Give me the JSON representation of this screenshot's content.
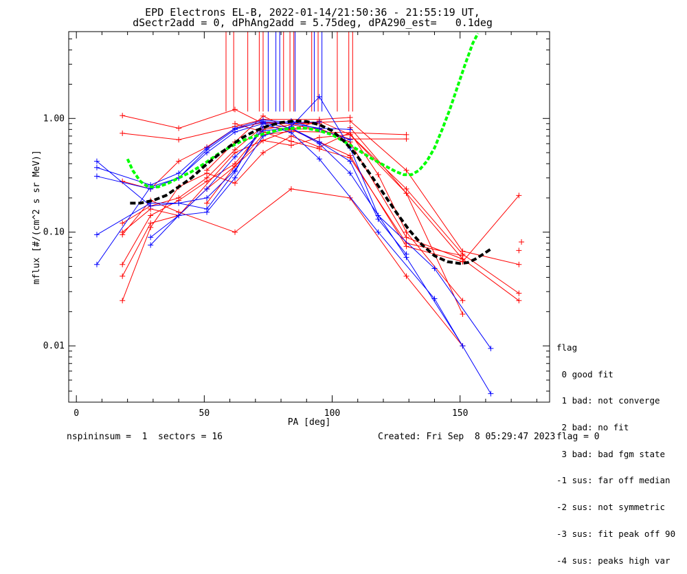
{
  "chart_data": {
    "type": "line",
    "title": "EPD Electrons EL-B, 2022-01-14/21:50:36 - 21:55:19 UT,",
    "subtitle": "dSectr2add = 0, dPhAng2add = 5.75deg, dPA290_est=   0.1deg",
    "xlabel": "PA [deg]",
    "ylabel": "mflux [#/(cm^2 s sr MeV)]",
    "x_ticks": [
      0,
      50,
      100,
      150
    ],
    "y_ticks": [
      "0.01",
      "0.10",
      "1.00"
    ],
    "y_scale": "log",
    "xlim": [
      -3,
      185
    ],
    "ylim": [
      0.0032,
      5.8
    ],
    "colors": {
      "red": "#ff0000",
      "blue": "#0000ff",
      "green": "#00ff00",
      "black": "#000000"
    },
    "red_series": [
      [
        [
          18,
          1.06
        ],
        [
          40,
          0.82
        ],
        [
          62,
          1.2
        ],
        [
          73,
          0.9
        ],
        [
          95,
          0.9
        ]
      ],
      [
        [
          18,
          0.74
        ],
        [
          40,
          0.65
        ],
        [
          62,
          0.85
        ],
        [
          73,
          0.98
        ],
        [
          95,
          0.98
        ],
        [
          107,
          1.02
        ]
      ],
      [
        [
          18,
          0.28
        ],
        [
          29,
          0.24
        ],
        [
          40,
          0.42
        ],
        [
          51,
          0.56
        ],
        [
          62,
          0.82
        ],
        [
          73,
          0.92
        ],
        [
          84,
          0.9
        ],
        [
          107,
          0.95
        ],
        [
          129,
          0.35
        ],
        [
          151,
          0.068
        ],
        [
          173,
          0.052
        ]
      ],
      [
        [
          18,
          0.12
        ],
        [
          29,
          0.17
        ],
        [
          40,
          0.2
        ],
        [
          51,
          0.3
        ],
        [
          62,
          0.53
        ],
        [
          73,
          0.85
        ],
        [
          84,
          0.8
        ],
        [
          95,
          0.95
        ],
        [
          107,
          0.72
        ],
        [
          129,
          0.24
        ],
        [
          151,
          0.064
        ],
        [
          173,
          0.029
        ]
      ],
      [
        [
          18,
          0.1
        ],
        [
          29,
          0.16
        ],
        [
          40,
          0.14
        ],
        [
          51,
          0.24
        ],
        [
          62,
          0.38
        ],
        [
          73,
          0.72
        ],
        [
          84,
          0.77
        ],
        [
          107,
          0.75
        ],
        [
          118,
          0.32
        ],
        [
          129,
          0.1
        ],
        [
          151,
          0.025
        ]
      ],
      [
        [
          18,
          0.095
        ],
        [
          29,
          0.19
        ],
        [
          40,
          0.15
        ],
        [
          62,
          0.1
        ],
        [
          84,
          0.24
        ],
        [
          107,
          0.2
        ],
        [
          129,
          0.041
        ],
        [
          151,
          0.01
        ]
      ],
      [
        [
          18,
          0.052
        ],
        [
          29,
          0.14
        ],
        [
          40,
          0.19
        ],
        [
          51,
          0.28
        ],
        [
          62,
          0.4
        ],
        [
          73,
          0.8
        ],
        [
          84,
          0.88
        ],
        [
          95,
          0.8
        ],
        [
          107,
          0.66
        ],
        [
          129,
          0.66
        ]
      ],
      [
        [
          18,
          0.041
        ],
        [
          29,
          0.12
        ],
        [
          40,
          0.14
        ],
        [
          62,
          0.5
        ],
        [
          73,
          0.64
        ],
        [
          84,
          0.58
        ],
        [
          95,
          0.68
        ],
        [
          107,
          0.72
        ],
        [
          129,
          0.22
        ],
        [
          151,
          0.019
        ]
      ],
      [
        [
          18,
          0.025
        ],
        [
          29,
          0.11
        ],
        [
          40,
          0.25
        ],
        [
          51,
          0.33
        ],
        [
          62,
          0.27
        ],
        [
          73,
          0.5
        ],
        [
          84,
          0.7
        ],
        [
          95,
          0.56
        ],
        [
          107,
          0.75
        ],
        [
          129,
          0.72
        ]
      ],
      [
        [
          51,
          0.35
        ],
        [
          62,
          0.62
        ],
        [
          73,
          1.05
        ],
        [
          84,
          0.8
        ],
        [
          95,
          0.82
        ],
        [
          107,
          0.62
        ],
        [
          129,
          0.09
        ],
        [
          151,
          0.058
        ]
      ],
      [
        [
          51,
          0.18
        ],
        [
          62,
          0.38
        ],
        [
          73,
          0.64
        ],
        [
          84,
          0.8
        ],
        [
          95,
          0.62
        ],
        [
          107,
          0.47
        ],
        [
          129,
          0.075
        ],
        [
          151,
          0.055
        ]
      ],
      [
        [
          62,
          0.9
        ],
        [
          73,
          0.76
        ],
        [
          84,
          0.63
        ],
        [
          95,
          0.54
        ],
        [
          107,
          0.45
        ],
        [
          129,
          0.08
        ],
        [
          151,
          0.062
        ]
      ],
      [
        [
          107,
          0.83
        ],
        [
          129,
          0.22
        ],
        [
          151,
          0.058
        ],
        [
          173,
          0.025
        ]
      ],
      [
        [
          151,
          0.055
        ],
        [
          173,
          0.21
        ]
      ],
      [
        [
          174,
          0.082
        ]
      ],
      [
        [
          173,
          0.069
        ]
      ]
    ],
    "blue_series": [
      [
        [
          8,
          0.42
        ],
        [
          29,
          0.17
        ],
        [
          40,
          0.18
        ],
        [
          51,
          0.16
        ],
        [
          62,
          0.34
        ],
        [
          73,
          0.92
        ],
        [
          84,
          0.82
        ],
        [
          95,
          0.6
        ],
        [
          107,
          0.33
        ],
        [
          129,
          0.06
        ],
        [
          151,
          0.01
        ]
      ],
      [
        [
          8,
          0.37
        ],
        [
          29,
          0.26
        ],
        [
          40,
          0.33
        ],
        [
          51,
          0.55
        ],
        [
          62,
          0.82
        ],
        [
          73,
          0.97
        ],
        [
          84,
          0.92
        ],
        [
          95,
          0.93
        ]
      ],
      [
        [
          8,
          0.31
        ],
        [
          29,
          0.24
        ],
        [
          40,
          0.3
        ],
        [
          51,
          0.53
        ],
        [
          62,
          0.8
        ],
        [
          73,
          0.94
        ],
        [
          84,
          0.9
        ],
        [
          95,
          0.82
        ],
        [
          107,
          0.8
        ]
      ],
      [
        [
          8,
          0.095
        ],
        [
          29,
          0.18
        ],
        [
          40,
          0.18
        ],
        [
          51,
          0.2
        ],
        [
          62,
          0.35
        ],
        [
          73,
          0.85
        ],
        [
          84,
          0.95
        ],
        [
          95,
          0.8
        ],
        [
          107,
          0.65
        ]
      ],
      [
        [
          8,
          0.052
        ],
        [
          29,
          0.25
        ],
        [
          40,
          0.3
        ],
        [
          51,
          0.5
        ],
        [
          62,
          0.76
        ],
        [
          73,
          0.9
        ],
        [
          84,
          0.75
        ],
        [
          95,
          0.44
        ],
        [
          118,
          0.1
        ],
        [
          140,
          0.026
        ],
        [
          162,
          0.0038
        ]
      ],
      [
        [
          29,
          0.09
        ],
        [
          40,
          0.14
        ],
        [
          51,
          0.15
        ],
        [
          62,
          0.3
        ],
        [
          73,
          0.7
        ],
        [
          84,
          0.85
        ],
        [
          95,
          1.55
        ],
        [
          107,
          0.55
        ],
        [
          118,
          0.14
        ],
        [
          140,
          0.048
        ],
        [
          162,
          0.0095
        ]
      ],
      [
        [
          29,
          0.077
        ],
        [
          40,
          0.14
        ],
        [
          51,
          0.24
        ],
        [
          62,
          0.46
        ],
        [
          73,
          0.78
        ],
        [
          84,
          0.82
        ],
        [
          95,
          0.62
        ],
        [
          107,
          0.42
        ],
        [
          118,
          0.13
        ],
        [
          129,
          0.064
        ]
      ]
    ],
    "red_vlines": [
      58.5,
      61.5,
      67,
      71.5,
      73,
      81,
      83.5,
      85,
      92,
      94.5,
      102,
      106.5,
      108
    ],
    "blue_vlines": [
      75,
      78,
      79.5,
      85.5,
      93,
      96
    ],
    "green_fit": [
      [
        20,
        0.44
      ],
      [
        22,
        0.35
      ],
      [
        25,
        0.28
      ],
      [
        28,
        0.25
      ],
      [
        32,
        0.25
      ],
      [
        36,
        0.27
      ],
      [
        40,
        0.3
      ],
      [
        45,
        0.34
      ],
      [
        50,
        0.4
      ],
      [
        55,
        0.48
      ],
      [
        60,
        0.56
      ],
      [
        65,
        0.64
      ],
      [
        70,
        0.7
      ],
      [
        75,
        0.75
      ],
      [
        80,
        0.8
      ],
      [
        85,
        0.82
      ],
      [
        90,
        0.82
      ],
      [
        95,
        0.78
      ],
      [
        100,
        0.72
      ],
      [
        105,
        0.62
      ],
      [
        110,
        0.53
      ],
      [
        115,
        0.45
      ],
      [
        120,
        0.39
      ],
      [
        125,
        0.34
      ],
      [
        128,
        0.32
      ],
      [
        131,
        0.32
      ],
      [
        134,
        0.35
      ],
      [
        137,
        0.42
      ],
      [
        140,
        0.55
      ],
      [
        143,
        0.8
      ],
      [
        146,
        1.2
      ],
      [
        149,
        1.9
      ],
      [
        152,
        3.0
      ],
      [
        155,
        4.6
      ],
      [
        157,
        5.6
      ]
    ],
    "black_fit": [
      [
        21,
        0.18
      ],
      [
        25,
        0.18
      ],
      [
        30,
        0.19
      ],
      [
        35,
        0.21
      ],
      [
        40,
        0.25
      ],
      [
        45,
        0.3
      ],
      [
        50,
        0.38
      ],
      [
        55,
        0.47
      ],
      [
        60,
        0.57
      ],
      [
        65,
        0.68
      ],
      [
        70,
        0.78
      ],
      [
        75,
        0.86
      ],
      [
        80,
        0.92
      ],
      [
        85,
        0.95
      ],
      [
        90,
        0.94
      ],
      [
        95,
        0.88
      ],
      [
        100,
        0.78
      ],
      [
        105,
        0.62
      ],
      [
        110,
        0.46
      ],
      [
        115,
        0.32
      ],
      [
        120,
        0.22
      ],
      [
        125,
        0.15
      ],
      [
        130,
        0.105
      ],
      [
        135,
        0.078
      ],
      [
        140,
        0.062
      ],
      [
        145,
        0.055
      ],
      [
        150,
        0.053
      ],
      [
        153,
        0.054
      ],
      [
        156,
        0.058
      ],
      [
        159,
        0.064
      ],
      [
        162,
        0.071
      ]
    ]
  },
  "legend": {
    "title": "flag",
    "items": [
      " 0 good fit",
      " 1 bad: not converge",
      " 2 bad: no fit",
      " 3 bad: bad fgm state",
      "-1 sus: far off median",
      "-2 sus: not symmetric",
      "-3 sus: fit peak off 90",
      "-4 sus: peaks high var"
    ]
  },
  "footer": {
    "left": "nspininsum =  1  sectors = 16",
    "middle": "Created: Fri Sep  8 05:29:47 2023",
    "right": "flag = 0"
  }
}
